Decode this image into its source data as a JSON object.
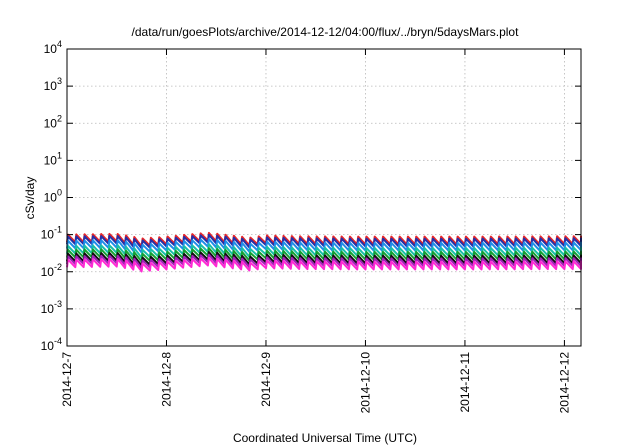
{
  "chart_data": {
    "type": "line",
    "title": "/data/run/goesPlots/archive/2014-12-12/04:00/flux/../bryn/5daysMars.plot",
    "xlabel": "Coordinated Universal Time (UTC)",
    "ylabel": "cSv/day",
    "yscale": "log",
    "ylim": [
      0.0001,
      10000
    ],
    "xlim": [
      "2014-12-07T00:00",
      "2014-12-12T04:00"
    ],
    "grid": true,
    "legend": "none",
    "yticks": [
      {
        "value": 0.0001,
        "base": "10",
        "exp": "-4"
      },
      {
        "value": 0.001,
        "base": "10",
        "exp": "-3"
      },
      {
        "value": 0.01,
        "base": "10",
        "exp": "-2"
      },
      {
        "value": 0.1,
        "base": "10",
        "exp": "-1"
      },
      {
        "value": 1,
        "base": "10",
        "exp": "0"
      },
      {
        "value": 10,
        "base": "10",
        "exp": "1"
      },
      {
        "value": 100,
        "base": "10",
        "exp": "2"
      },
      {
        "value": 1000,
        "base": "10",
        "exp": "3"
      },
      {
        "value": 10000,
        "base": "10",
        "exp": "4"
      }
    ],
    "xticks": [
      "2014-12-7",
      "2014-12-8",
      "2014-12-9",
      "2014-12-10",
      "2014-12-11",
      "2014-12-12"
    ],
    "x_period_hours": 2,
    "series": [
      {
        "color": "#e8262a",
        "base": 0.085,
        "amplitude": 0.45
      },
      {
        "color": "#2430a8",
        "base": 0.075,
        "amplitude": 0.45
      },
      {
        "color": "#1f8de8",
        "base": 0.058,
        "amplitude": 0.45
      },
      {
        "color": "#19bfa8",
        "base": 0.042,
        "amplitude": 0.45
      },
      {
        "color": "#14a032",
        "base": 0.033,
        "amplitude": 0.45
      },
      {
        "color": "#101010",
        "base": 0.026,
        "amplitude": 0.45
      },
      {
        "color": "#a020b8",
        "base": 0.022,
        "amplitude": 0.45
      },
      {
        "color": "#ff2ad4",
        "base": 0.018,
        "amplitude": 0.45
      }
    ],
    "envelope": [
      {
        "x": "2014-12-07T00:00",
        "factor": 1.0
      },
      {
        "x": "2014-12-07T12:00",
        "factor": 1.05
      },
      {
        "x": "2014-12-07T18:00",
        "factor": 0.78
      },
      {
        "x": "2014-12-08T00:00",
        "factor": 0.88
      },
      {
        "x": "2014-12-08T10:00",
        "factor": 1.12
      },
      {
        "x": "2014-12-08T20:00",
        "factor": 0.82
      },
      {
        "x": "2014-12-09T00:00",
        "factor": 0.95
      },
      {
        "x": "2014-12-09T08:00",
        "factor": 0.9
      },
      {
        "x": "2014-12-10T00:00",
        "factor": 0.88
      },
      {
        "x": "2014-12-11T00:00",
        "factor": 0.88
      },
      {
        "x": "2014-12-12T04:00",
        "factor": 0.9
      }
    ]
  }
}
